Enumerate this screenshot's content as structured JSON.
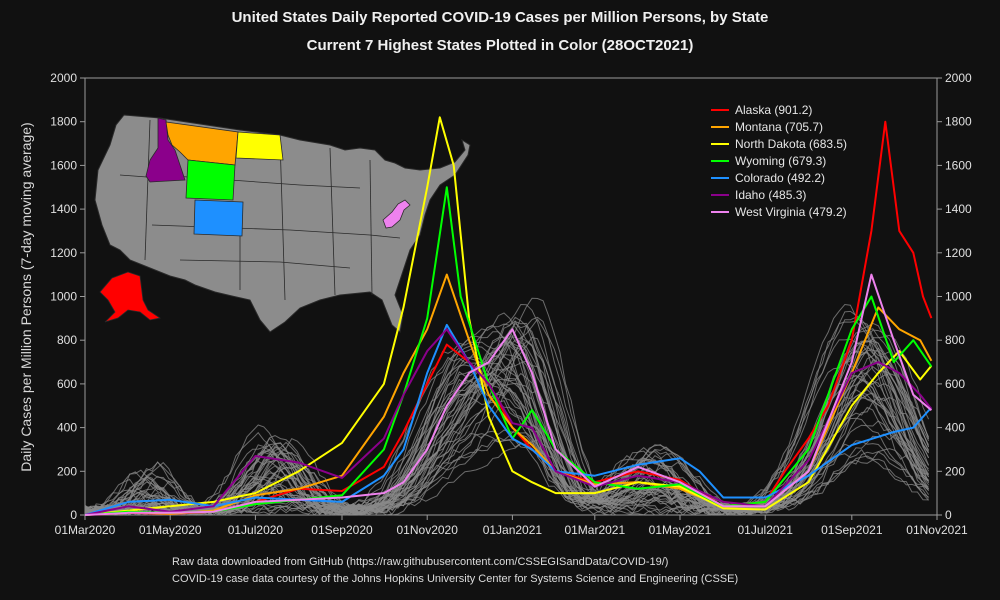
{
  "chart_data": {
    "type": "line",
    "title": "United States Daily Reported COVID-19 Cases per Million Persons, by State",
    "subtitle": "Current 7 Highest States Plotted in Color (28OCT2021)",
    "ylabel": "Daily Cases per Million Persons (7-day moving average)",
    "xlabel": "",
    "ylim": [
      0,
      2000
    ],
    "xlim": [
      "2020-03-01",
      "2021-11-01"
    ],
    "y_ticks": [
      0,
      200,
      400,
      600,
      800,
      1000,
      1200,
      1400,
      1600,
      1800,
      2000
    ],
    "x_ticks": [
      {
        "date": "2020-03-01",
        "label": "01Mar2020"
      },
      {
        "date": "2020-05-01",
        "label": "01May2020"
      },
      {
        "date": "2020-07-01",
        "label": "01Jul2020"
      },
      {
        "date": "2020-09-01",
        "label": "01Sep2020"
      },
      {
        "date": "2020-11-01",
        "label": "01Nov2020"
      },
      {
        "date": "2021-01-01",
        "label": "01Jan2021"
      },
      {
        "date": "2021-03-01",
        "label": "01Mar2021"
      },
      {
        "date": "2021-05-01",
        "label": "01May2021"
      },
      {
        "date": "2021-07-01",
        "label": "01Jul2021"
      },
      {
        "date": "2021-09-01",
        "label": "01Sep2021"
      },
      {
        "date": "2021-11-01",
        "label": "01Nov2021"
      }
    ],
    "legend_position": "top-right",
    "grid": false,
    "series": [
      {
        "name": "Alaska (901.2)",
        "color": "#ff0000",
        "points": [
          [
            "2020-03-01",
            0
          ],
          [
            "2020-04-01",
            10
          ],
          [
            "2020-05-01",
            5
          ],
          [
            "2020-06-01",
            15
          ],
          [
            "2020-07-01",
            60
          ],
          [
            "2020-08-01",
            120
          ],
          [
            "2020-09-01",
            110
          ],
          [
            "2020-10-01",
            220
          ],
          [
            "2020-10-15",
            380
          ],
          [
            "2020-11-01",
            600
          ],
          [
            "2020-11-15",
            780
          ],
          [
            "2020-12-01",
            700
          ],
          [
            "2020-12-15",
            600
          ],
          [
            "2021-01-01",
            400
          ],
          [
            "2021-01-15",
            300
          ],
          [
            "2021-02-01",
            200
          ],
          [
            "2021-03-01",
            150
          ],
          [
            "2021-04-01",
            200
          ],
          [
            "2021-05-01",
            160
          ],
          [
            "2021-06-01",
            40
          ],
          [
            "2021-07-01",
            60
          ],
          [
            "2021-07-15",
            200
          ],
          [
            "2021-08-01",
            350
          ],
          [
            "2021-08-15",
            500
          ],
          [
            "2021-09-01",
            800
          ],
          [
            "2021-09-15",
            1300
          ],
          [
            "2021-09-25",
            1800
          ],
          [
            "2021-10-05",
            1300
          ],
          [
            "2021-10-15",
            1200
          ],
          [
            "2021-10-22",
            1000
          ],
          [
            "2021-10-28",
            901.2
          ]
        ]
      },
      {
        "name": "Montana (705.7)",
        "color": "#ffa500",
        "points": [
          [
            "2020-03-01",
            0
          ],
          [
            "2020-04-01",
            15
          ],
          [
            "2020-05-01",
            5
          ],
          [
            "2020-06-01",
            20
          ],
          [
            "2020-07-01",
            90
          ],
          [
            "2020-08-01",
            120
          ],
          [
            "2020-09-01",
            180
          ],
          [
            "2020-10-01",
            450
          ],
          [
            "2020-10-15",
            650
          ],
          [
            "2020-11-01",
            850
          ],
          [
            "2020-11-15",
            1100
          ],
          [
            "2020-12-01",
            800
          ],
          [
            "2020-12-15",
            550
          ],
          [
            "2021-01-01",
            400
          ],
          [
            "2021-01-15",
            320
          ],
          [
            "2021-02-01",
            200
          ],
          [
            "2021-03-01",
            140
          ],
          [
            "2021-04-01",
            150
          ],
          [
            "2021-05-01",
            120
          ],
          [
            "2021-06-01",
            40
          ],
          [
            "2021-07-01",
            40
          ],
          [
            "2021-08-01",
            200
          ],
          [
            "2021-09-01",
            650
          ],
          [
            "2021-09-20",
            950
          ],
          [
            "2021-10-05",
            850
          ],
          [
            "2021-10-20",
            800
          ],
          [
            "2021-10-28",
            705.7
          ]
        ]
      },
      {
        "name": "North Dakota (683.5)",
        "color": "#ffff00",
        "points": [
          [
            "2020-03-01",
            0
          ],
          [
            "2020-04-01",
            20
          ],
          [
            "2020-05-01",
            40
          ],
          [
            "2020-06-01",
            60
          ],
          [
            "2020-07-01",
            100
          ],
          [
            "2020-08-01",
            200
          ],
          [
            "2020-09-01",
            330
          ],
          [
            "2020-10-01",
            600
          ],
          [
            "2020-10-15",
            950
          ],
          [
            "2020-11-01",
            1500
          ],
          [
            "2020-11-10",
            1820
          ],
          [
            "2020-11-20",
            1600
          ],
          [
            "2020-12-01",
            900
          ],
          [
            "2020-12-15",
            450
          ],
          [
            "2021-01-01",
            200
          ],
          [
            "2021-01-15",
            150
          ],
          [
            "2021-02-01",
            100
          ],
          [
            "2021-03-01",
            100
          ],
          [
            "2021-04-01",
            150
          ],
          [
            "2021-05-01",
            130
          ],
          [
            "2021-06-01",
            30
          ],
          [
            "2021-07-01",
            25
          ],
          [
            "2021-08-01",
            150
          ],
          [
            "2021-09-01",
            500
          ],
          [
            "2021-09-20",
            650
          ],
          [
            "2021-10-05",
            750
          ],
          [
            "2021-10-20",
            620
          ],
          [
            "2021-10-28",
            683.5
          ]
        ]
      },
      {
        "name": "Wyoming (679.3)",
        "color": "#00ff00",
        "points": [
          [
            "2020-03-01",
            0
          ],
          [
            "2020-04-01",
            15
          ],
          [
            "2020-05-01",
            10
          ],
          [
            "2020-06-01",
            15
          ],
          [
            "2020-07-01",
            50
          ],
          [
            "2020-08-01",
            70
          ],
          [
            "2020-09-01",
            90
          ],
          [
            "2020-10-01",
            300
          ],
          [
            "2020-10-15",
            550
          ],
          [
            "2020-11-01",
            900
          ],
          [
            "2020-11-15",
            1500
          ],
          [
            "2020-11-25",
            1000
          ],
          [
            "2020-12-15",
            600
          ],
          [
            "2021-01-01",
            350
          ],
          [
            "2021-01-15",
            480
          ],
          [
            "2021-02-01",
            300
          ],
          [
            "2021-03-01",
            150
          ],
          [
            "2021-04-01",
            120
          ],
          [
            "2021-05-01",
            140
          ],
          [
            "2021-06-01",
            40
          ],
          [
            "2021-07-01",
            60
          ],
          [
            "2021-08-01",
            300
          ],
          [
            "2021-09-01",
            850
          ],
          [
            "2021-09-15",
            1000
          ],
          [
            "2021-10-01",
            700
          ],
          [
            "2021-10-15",
            800
          ],
          [
            "2021-10-28",
            679.3
          ]
        ]
      },
      {
        "name": "Colorado (492.2)",
        "color": "#1e90ff",
        "points": [
          [
            "2020-03-01",
            0
          ],
          [
            "2020-04-01",
            60
          ],
          [
            "2020-05-01",
            70
          ],
          [
            "2020-06-01",
            40
          ],
          [
            "2020-07-01",
            80
          ],
          [
            "2020-08-01",
            70
          ],
          [
            "2020-09-01",
            60
          ],
          [
            "2020-10-01",
            180
          ],
          [
            "2020-10-15",
            300
          ],
          [
            "2020-11-01",
            650
          ],
          [
            "2020-11-15",
            870
          ],
          [
            "2020-12-01",
            700
          ],
          [
            "2020-12-15",
            500
          ],
          [
            "2021-01-01",
            350
          ],
          [
            "2021-01-15",
            300
          ],
          [
            "2021-02-01",
            200
          ],
          [
            "2021-03-01",
            180
          ],
          [
            "2021-04-01",
            230
          ],
          [
            "2021-05-01",
            260
          ],
          [
            "2021-05-15",
            200
          ],
          [
            "2021-06-01",
            80
          ],
          [
            "2021-07-01",
            80
          ],
          [
            "2021-08-01",
            180
          ],
          [
            "2021-09-01",
            320
          ],
          [
            "2021-10-01",
            380
          ],
          [
            "2021-10-15",
            400
          ],
          [
            "2021-10-28",
            492.2
          ]
        ]
      },
      {
        "name": "Idaho (485.3)",
        "color": "#8b008b",
        "points": [
          [
            "2020-03-01",
            0
          ],
          [
            "2020-04-01",
            40
          ],
          [
            "2020-05-01",
            15
          ],
          [
            "2020-06-01",
            40
          ],
          [
            "2020-07-01",
            270
          ],
          [
            "2020-08-01",
            240
          ],
          [
            "2020-09-01",
            170
          ],
          [
            "2020-10-01",
            350
          ],
          [
            "2020-10-15",
            550
          ],
          [
            "2020-11-01",
            750
          ],
          [
            "2020-11-15",
            850
          ],
          [
            "2020-12-01",
            700
          ],
          [
            "2020-12-15",
            600
          ],
          [
            "2021-01-01",
            420
          ],
          [
            "2021-01-15",
            400
          ],
          [
            "2021-02-01",
            200
          ],
          [
            "2021-03-01",
            130
          ],
          [
            "2021-04-01",
            180
          ],
          [
            "2021-05-01",
            150
          ],
          [
            "2021-06-01",
            60
          ],
          [
            "2021-07-01",
            40
          ],
          [
            "2021-08-01",
            250
          ],
          [
            "2021-09-01",
            650
          ],
          [
            "2021-09-20",
            700
          ],
          [
            "2021-10-05",
            650
          ],
          [
            "2021-10-20",
            550
          ],
          [
            "2021-10-28",
            485.3
          ]
        ]
      },
      {
        "name": "West Virginia (479.2)",
        "color": "#ee82ee",
        "points": [
          [
            "2020-03-01",
            0
          ],
          [
            "2020-04-01",
            10
          ],
          [
            "2020-05-01",
            10
          ],
          [
            "2020-06-01",
            15
          ],
          [
            "2020-07-01",
            60
          ],
          [
            "2020-08-01",
            70
          ],
          [
            "2020-09-01",
            80
          ],
          [
            "2020-10-01",
            100
          ],
          [
            "2020-10-15",
            150
          ],
          [
            "2020-11-01",
            300
          ],
          [
            "2020-11-15",
            500
          ],
          [
            "2020-12-01",
            650
          ],
          [
            "2020-12-15",
            700
          ],
          [
            "2021-01-01",
            850
          ],
          [
            "2021-01-15",
            650
          ],
          [
            "2021-02-01",
            300
          ],
          [
            "2021-03-01",
            130
          ],
          [
            "2021-04-01",
            220
          ],
          [
            "2021-05-01",
            150
          ],
          [
            "2021-06-01",
            40
          ],
          [
            "2021-07-01",
            40
          ],
          [
            "2021-08-01",
            200
          ],
          [
            "2021-09-01",
            700
          ],
          [
            "2021-09-15",
            1100
          ],
          [
            "2021-10-01",
            800
          ],
          [
            "2021-10-15",
            550
          ],
          [
            "2021-10-28",
            479.2
          ]
        ]
      }
    ]
  },
  "map": {
    "highlight_states": [
      "Alaska",
      "Montana",
      "North Dakota",
      "Wyoming",
      "Colorado",
      "Idaho",
      "West Virginia"
    ],
    "base_color": "#8c8c8c"
  },
  "footer": {
    "line1": "Raw data downloaded from GitHub (https://raw.githubusercontent.com/CSSEGISandData/COVID-19/)",
    "line2": "COVID-19 case data courtesy of the Johns Hopkins University Center for Systems Science and Engineering (CSSE)"
  }
}
